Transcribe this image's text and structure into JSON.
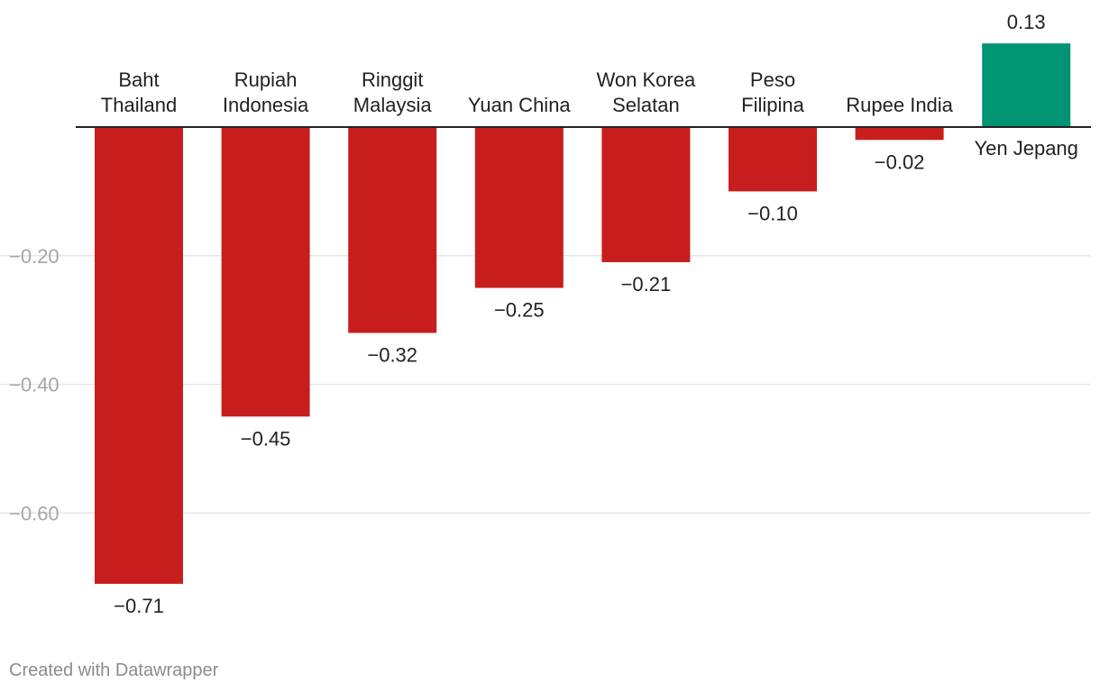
{
  "chart_data": {
    "type": "bar",
    "categories": [
      [
        "Baht",
        "Thailand"
      ],
      [
        "Rupiah",
        "Indonesia"
      ],
      [
        "Ringgit",
        "Malaysia"
      ],
      [
        "Yuan China"
      ],
      [
        "Won Korea",
        "Selatan"
      ],
      [
        "Peso",
        "Filipina"
      ],
      [
        "Rupee India"
      ],
      [
        "Yen Jepang"
      ]
    ],
    "values": [
      -0.71,
      -0.45,
      -0.32,
      -0.25,
      -0.21,
      -0.1,
      -0.02,
      0.13
    ],
    "value_labels": [
      "−0.71",
      "−0.45",
      "−0.32",
      "−0.25",
      "−0.21",
      "−0.10",
      "−0.02",
      "0.13"
    ],
    "yticks": [
      -0.2,
      -0.4,
      -0.6
    ],
    "ytick_labels": [
      "−0.20",
      "−0.40",
      "−0.60"
    ],
    "ylim": [
      -0.76,
      0.13
    ],
    "colors": {
      "negative": "#c71e1d",
      "positive": "#009473",
      "grid": "#e6e6e6",
      "axis": "#222222",
      "tick_text": "#a6a6a6",
      "label_text": "#222222"
    },
    "title": "",
    "xlabel": "",
    "ylabel": ""
  },
  "footer": {
    "credit": "Created with Datawrapper"
  }
}
